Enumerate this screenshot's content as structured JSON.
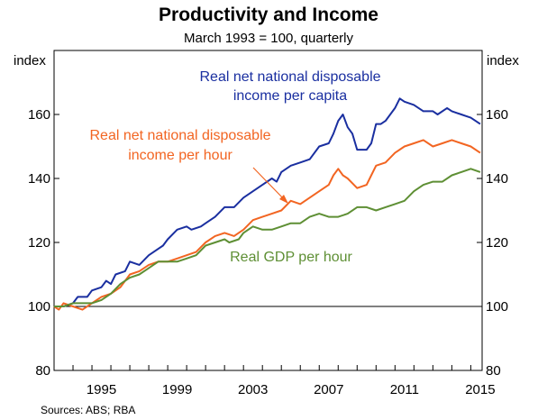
{
  "chart_data": {
    "type": "line",
    "title": "Productivity and Income",
    "subtitle": "March 1993 = 100, quarterly",
    "ylabel_left": "index",
    "ylabel_right": "index",
    "ylim": [
      80,
      180
    ],
    "yticks": [
      80,
      100,
      120,
      140,
      160
    ],
    "xlim": [
      1993.0,
      2015.6
    ],
    "xticks": [
      1995,
      1999,
      2003,
      2007,
      2011,
      2015
    ],
    "grid": false,
    "source": "Sources:   ABS; RBA",
    "series": [
      {
        "name": "Real net national disposable income per capita",
        "label_lines": [
          "Real net national disposable",
          "income per capita"
        ],
        "color": "#1a2fa0",
        "points": [
          [
            1993.0,
            100
          ],
          [
            1993.5,
            100
          ],
          [
            1994.0,
            101
          ],
          [
            1994.25,
            103
          ],
          [
            1994.75,
            103
          ],
          [
            1995.0,
            105
          ],
          [
            1995.5,
            106
          ],
          [
            1995.75,
            108
          ],
          [
            1996.0,
            107
          ],
          [
            1996.25,
            110
          ],
          [
            1996.75,
            111
          ],
          [
            1997.0,
            114
          ],
          [
            1997.5,
            113
          ],
          [
            1998.0,
            116
          ],
          [
            1998.5,
            118
          ],
          [
            1998.75,
            119
          ],
          [
            1999.0,
            121
          ],
          [
            1999.5,
            124
          ],
          [
            2000.0,
            125
          ],
          [
            2000.25,
            124
          ],
          [
            2000.75,
            125
          ],
          [
            2001.0,
            126
          ],
          [
            2001.5,
            128
          ],
          [
            2002.0,
            131
          ],
          [
            2002.5,
            131
          ],
          [
            2003.0,
            134
          ],
          [
            2003.5,
            136
          ],
          [
            2004.0,
            138
          ],
          [
            2004.5,
            140
          ],
          [
            2004.75,
            139
          ],
          [
            2005.0,
            142
          ],
          [
            2005.5,
            144
          ],
          [
            2006.0,
            145
          ],
          [
            2006.5,
            146
          ],
          [
            2007.0,
            150
          ],
          [
            2007.5,
            151
          ],
          [
            2007.75,
            154
          ],
          [
            2008.0,
            158
          ],
          [
            2008.25,
            160
          ],
          [
            2008.5,
            156
          ],
          [
            2008.75,
            154
          ],
          [
            2009.0,
            149
          ],
          [
            2009.5,
            149
          ],
          [
            2009.75,
            151
          ],
          [
            2010.0,
            157
          ],
          [
            2010.25,
            157
          ],
          [
            2010.5,
            158
          ],
          [
            2011.0,
            162
          ],
          [
            2011.25,
            165
          ],
          [
            2011.5,
            164
          ],
          [
            2012.0,
            163
          ],
          [
            2012.5,
            161
          ],
          [
            2013.0,
            161
          ],
          [
            2013.25,
            160
          ],
          [
            2013.75,
            162
          ],
          [
            2014.0,
            161
          ],
          [
            2014.5,
            160
          ],
          [
            2015.0,
            159
          ],
          [
            2015.5,
            157
          ]
        ]
      },
      {
        "name": "Real net national disposable income per hour",
        "label_lines": [
          "Real net national disposable",
          "income per hour"
        ],
        "color": "#f26522",
        "points": [
          [
            1993.0,
            100
          ],
          [
            1993.25,
            99
          ],
          [
            1993.5,
            101
          ],
          [
            1994.0,
            100
          ],
          [
            1994.5,
            99
          ],
          [
            1995.0,
            101
          ],
          [
            1995.5,
            103
          ],
          [
            1996.0,
            104
          ],
          [
            1996.5,
            106
          ],
          [
            1997.0,
            110
          ],
          [
            1997.5,
            111
          ],
          [
            1998.0,
            113
          ],
          [
            1998.5,
            114
          ],
          [
            1999.0,
            114
          ],
          [
            1999.5,
            115
          ],
          [
            2000.0,
            116
          ],
          [
            2000.5,
            117
          ],
          [
            2001.0,
            120
          ],
          [
            2001.5,
            122
          ],
          [
            2002.0,
            123
          ],
          [
            2002.5,
            122
          ],
          [
            2003.0,
            124
          ],
          [
            2003.5,
            127
          ],
          [
            2004.0,
            128
          ],
          [
            2004.5,
            129
          ],
          [
            2005.0,
            130
          ],
          [
            2005.5,
            133
          ],
          [
            2006.0,
            132
          ],
          [
            2006.5,
            134
          ],
          [
            2007.0,
            136
          ],
          [
            2007.5,
            138
          ],
          [
            2007.75,
            141
          ],
          [
            2008.0,
            143
          ],
          [
            2008.25,
            141
          ],
          [
            2008.5,
            140
          ],
          [
            2009.0,
            137
          ],
          [
            2009.5,
            138
          ],
          [
            2009.75,
            141
          ],
          [
            2010.0,
            144
          ],
          [
            2010.5,
            145
          ],
          [
            2011.0,
            148
          ],
          [
            2011.5,
            150
          ],
          [
            2012.0,
            151
          ],
          [
            2012.5,
            152
          ],
          [
            2013.0,
            150
          ],
          [
            2013.5,
            151
          ],
          [
            2014.0,
            152
          ],
          [
            2014.5,
            151
          ],
          [
            2015.0,
            150
          ],
          [
            2015.5,
            148
          ]
        ]
      },
      {
        "name": "Real GDP per hour",
        "label_lines": [
          "Real GDP per hour"
        ],
        "color": "#5e8f34",
        "points": [
          [
            1993.0,
            100
          ],
          [
            1993.5,
            100
          ],
          [
            1994.0,
            101
          ],
          [
            1994.5,
            101
          ],
          [
            1995.0,
            101
          ],
          [
            1995.5,
            102
          ],
          [
            1996.0,
            104
          ],
          [
            1996.5,
            107
          ],
          [
            1997.0,
            109
          ],
          [
            1997.5,
            110
          ],
          [
            1998.0,
            112
          ],
          [
            1998.5,
            114
          ],
          [
            1999.0,
            114
          ],
          [
            1999.5,
            114
          ],
          [
            2000.0,
            115
          ],
          [
            2000.5,
            116
          ],
          [
            2001.0,
            119
          ],
          [
            2001.5,
            120
          ],
          [
            2002.0,
            121
          ],
          [
            2002.25,
            120
          ],
          [
            2002.75,
            121
          ],
          [
            2003.0,
            123
          ],
          [
            2003.5,
            125
          ],
          [
            2004.0,
            124
          ],
          [
            2004.5,
            124
          ],
          [
            2005.0,
            125
          ],
          [
            2005.5,
            126
          ],
          [
            2006.0,
            126
          ],
          [
            2006.5,
            128
          ],
          [
            2007.0,
            129
          ],
          [
            2007.5,
            128
          ],
          [
            2008.0,
            128
          ],
          [
            2008.5,
            129
          ],
          [
            2009.0,
            131
          ],
          [
            2009.5,
            131
          ],
          [
            2010.0,
            130
          ],
          [
            2010.5,
            131
          ],
          [
            2011.0,
            132
          ],
          [
            2011.5,
            133
          ],
          [
            2012.0,
            136
          ],
          [
            2012.5,
            138
          ],
          [
            2013.0,
            139
          ],
          [
            2013.5,
            139
          ],
          [
            2014.0,
            141
          ],
          [
            2014.5,
            142
          ],
          [
            2015.0,
            143
          ],
          [
            2015.5,
            142
          ]
        ]
      }
    ]
  }
}
